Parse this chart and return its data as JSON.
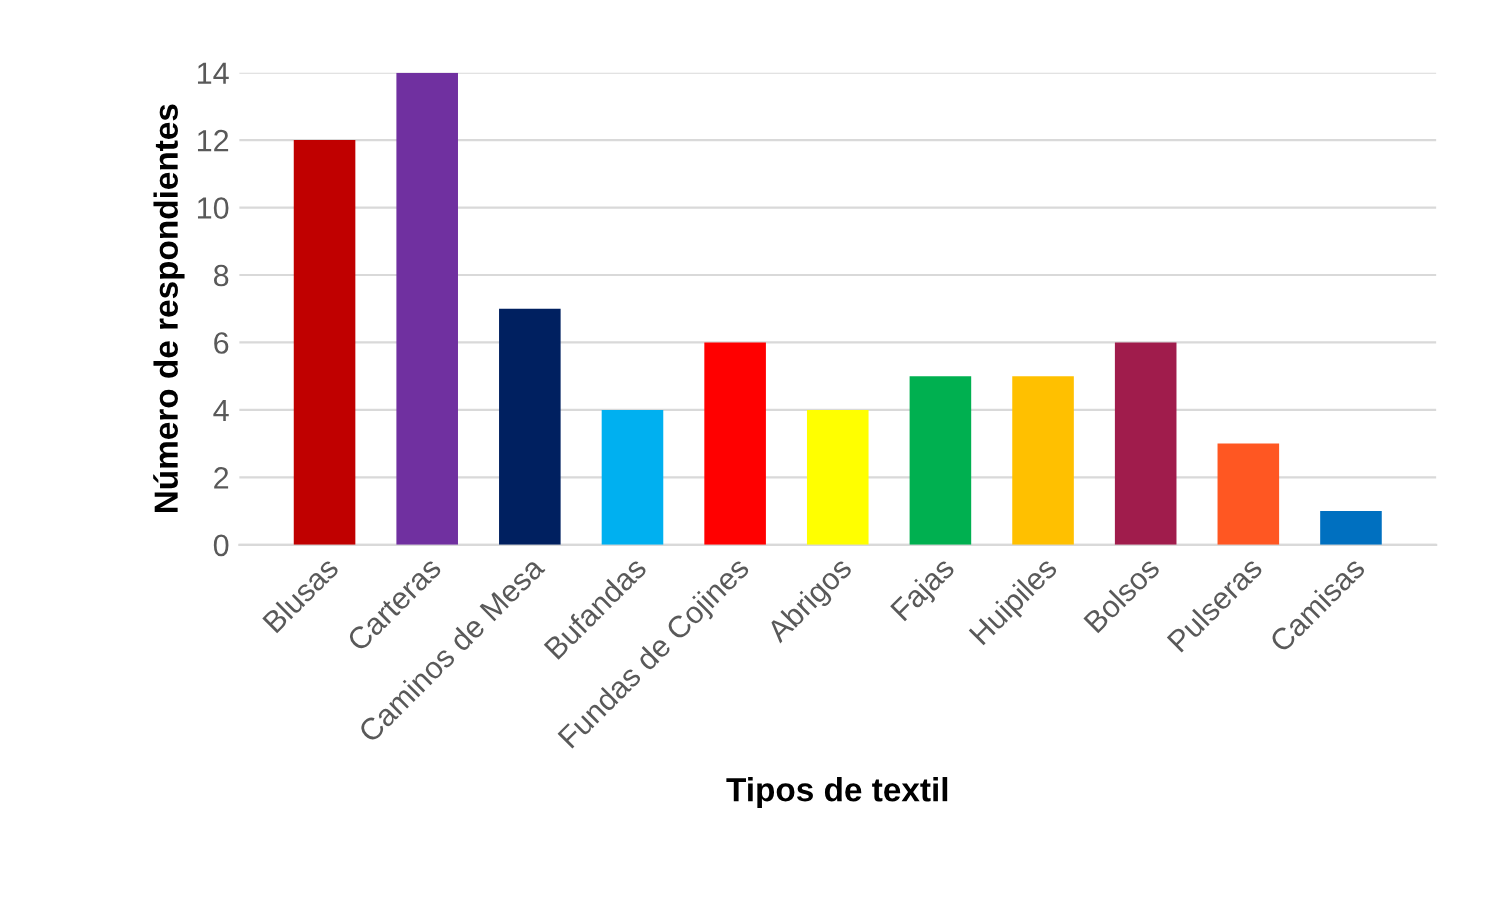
{
  "chart_data": {
    "type": "bar",
    "xlabel": "Tipos de textil",
    "ylabel": "Número de respondientes",
    "categories": [
      "Blusas",
      "Carteras",
      "Caminos de Mesa",
      "Bufandas",
      "Fundas de Cojines",
      "Abrigos",
      "Fajas",
      "Huipiles",
      "Bolsos",
      "Pulseras",
      "Camisas"
    ],
    "values": [
      12,
      14,
      7,
      4,
      6,
      4,
      5,
      5,
      6,
      3,
      1
    ],
    "colors": [
      "#c00000",
      "#7030a0",
      "#002060",
      "#00b0f0",
      "#ff0000",
      "#ffff00",
      "#00b050",
      "#ffc000",
      "#a01c4c",
      "#ff5722",
      "#0070c0"
    ],
    "ylim": [
      0,
      14
    ],
    "yticks": [
      0,
      2,
      4,
      6,
      8,
      10,
      12,
      14
    ],
    "grid": "y",
    "legend": false
  }
}
